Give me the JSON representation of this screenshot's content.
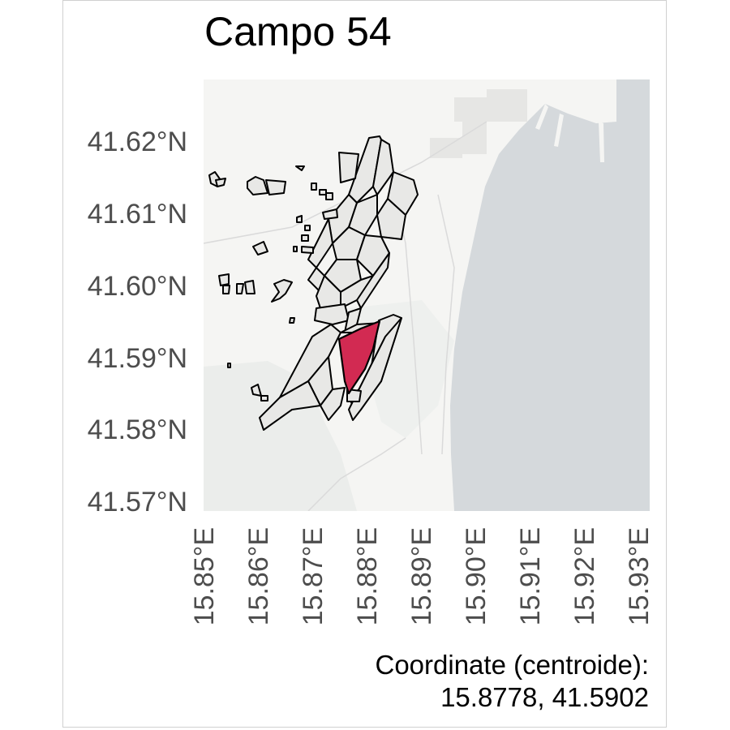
{
  "title": "Campo 54",
  "caption": {
    "label": "Coordinate (centroide):",
    "value": "15.8778, 41.5902"
  },
  "axes": {
    "y_ticks": [
      "41.62°N",
      "41.61°N",
      "41.60°N",
      "41.59°N",
      "41.58°N",
      "41.57°N"
    ],
    "x_ticks": [
      "15.85°E",
      "15.86°E",
      "15.87°E",
      "15.88°E",
      "15.89°E",
      "15.90°E",
      "15.91°E",
      "15.92°E",
      "15.93°E"
    ]
  },
  "map": {
    "land_color": "#f5f5f3",
    "sea_color": "#d5d9dc",
    "field_fill": "#e8e8e6",
    "field_stroke": "#000000",
    "highlight_fill": "#d22a52",
    "highlight_field_centroid": [
      15.8778,
      41.5902
    ]
  }
}
